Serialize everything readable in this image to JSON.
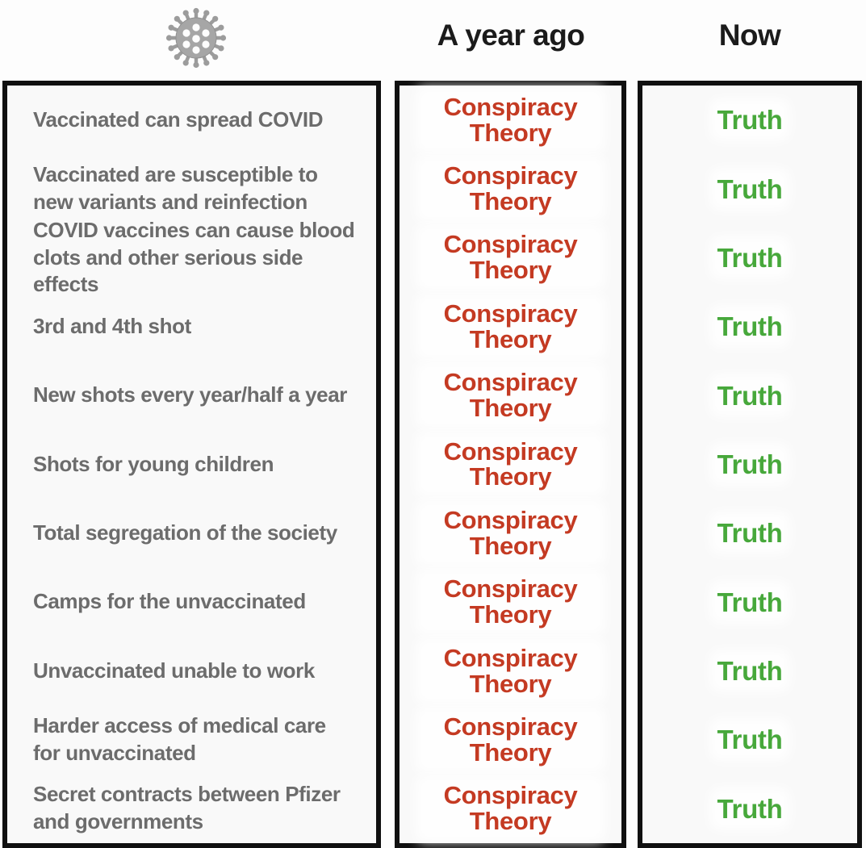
{
  "header": {
    "icon": "coronavirus-icon",
    "a_year_ago_label": "A year ago",
    "now_label": "Now"
  },
  "table": {
    "rows": [
      {
        "claim": "Vaccinated can spread COVID",
        "a_year_ago": "Conspiracy Theory",
        "now": "Truth"
      },
      {
        "claim": "Vaccinated are susceptible to new variants and reinfection",
        "a_year_ago": "Conspiracy Theory",
        "now": "Truth"
      },
      {
        "claim": "COVID vaccines can cause blood clots and other serious side effects",
        "a_year_ago": "Conspiracy Theory",
        "now": "Truth"
      },
      {
        "claim": "3rd and 4th shot",
        "a_year_ago": "Conspiracy Theory",
        "now": "Truth"
      },
      {
        "claim": "New shots every year/half a year",
        "a_year_ago": "Conspiracy Theory",
        "now": "Truth"
      },
      {
        "claim": "Shots for young children",
        "a_year_ago": "Conspiracy Theory",
        "now": "Truth"
      },
      {
        "claim": "Total segregation of the society",
        "a_year_ago": "Conspiracy Theory",
        "now": "Truth"
      },
      {
        "claim": "Camps for the unvaccinated",
        "a_year_ago": "Conspiracy Theory",
        "now": "Truth"
      },
      {
        "claim": "Unvaccinated unable to work",
        "a_year_ago": "Conspiracy Theory",
        "now": "Truth"
      },
      {
        "claim": "Harder access of medical care for unvaccinated",
        "a_year_ago": "Conspiracy Theory",
        "now": "Truth"
      },
      {
        "claim": "Secret contracts between Pfizer and governments",
        "a_year_ago": "Conspiracy Theory",
        "now": "Truth"
      }
    ]
  },
  "colors": {
    "conspiracy_red": "#c43a22",
    "truth_green": "#47a83b",
    "claim_gray": "#6c6c6c",
    "header_ink": "#1b1b1b",
    "border_black": "#101010",
    "virus_gray": "#a6a6a6"
  }
}
